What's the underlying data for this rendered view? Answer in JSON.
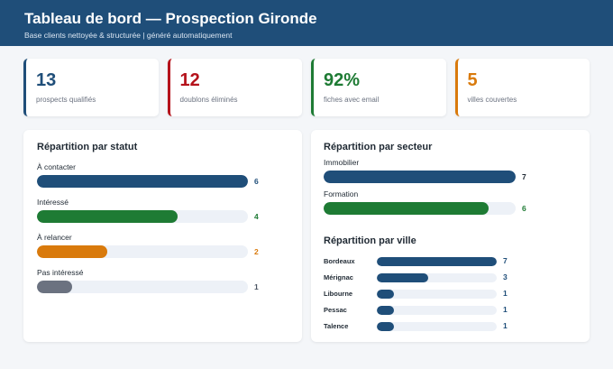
{
  "header": {
    "title": "Tableau de bord — Prospection Gironde",
    "subtitle": "Base clients nettoyée & structurée  |  généré automatiquement"
  },
  "kpis": [
    {
      "value": "13",
      "label": "prospects qualifiés",
      "color": "#1f4e79"
    },
    {
      "value": "12",
      "label": "doublons éliminés",
      "color": "#b5121b"
    },
    {
      "value": "92%",
      "label": "fiches avec email",
      "color": "#1e7b34"
    },
    {
      "value": "5",
      "label": "villes couvertes",
      "color": "#d97a0c"
    }
  ],
  "statut": {
    "title": "Répartition par statut",
    "max": 6,
    "items": [
      {
        "label": "À contacter",
        "count": 6,
        "display": "6",
        "color": "#1f4e79",
        "count_color": "#1f4e79"
      },
      {
        "label": "Intéressé",
        "count": 4,
        "display": "4",
        "color": "#1e7b34",
        "count_color": "#1e7b34"
      },
      {
        "label": "À relancer",
        "count": 2,
        "display": "2",
        "color": "#d97a0c",
        "count_color": "#d97a0c"
      },
      {
        "label": "Pas intéressé",
        "count": 1,
        "display": "1",
        "color": "#6b7280",
        "count_color": "#4b5563"
      }
    ]
  },
  "secteur": {
    "title": "Répartition par secteur",
    "max": 7,
    "items": [
      {
        "label": "Immobilier",
        "count": 7,
        "display": "7",
        "color": "#1f4e79",
        "count_color": "#1f2933"
      },
      {
        "label": "Formation",
        "count": 6,
        "display": "6",
        "color": "#1e7b34",
        "count_color": "#1e7b34"
      }
    ]
  },
  "ville": {
    "title": "Répartition par ville",
    "max": 7,
    "color": "#1f4e79",
    "items": [
      {
        "label": "Bordeaux",
        "count": 7,
        "display": "7"
      },
      {
        "label": "Mérignac",
        "count": 3,
        "display": "3"
      },
      {
        "label": "Libourne",
        "count": 1,
        "display": "1"
      },
      {
        "label": "Pessac",
        "count": 1,
        "display": "1"
      },
      {
        "label": "Talence",
        "count": 1,
        "display": "1"
      }
    ]
  }
}
